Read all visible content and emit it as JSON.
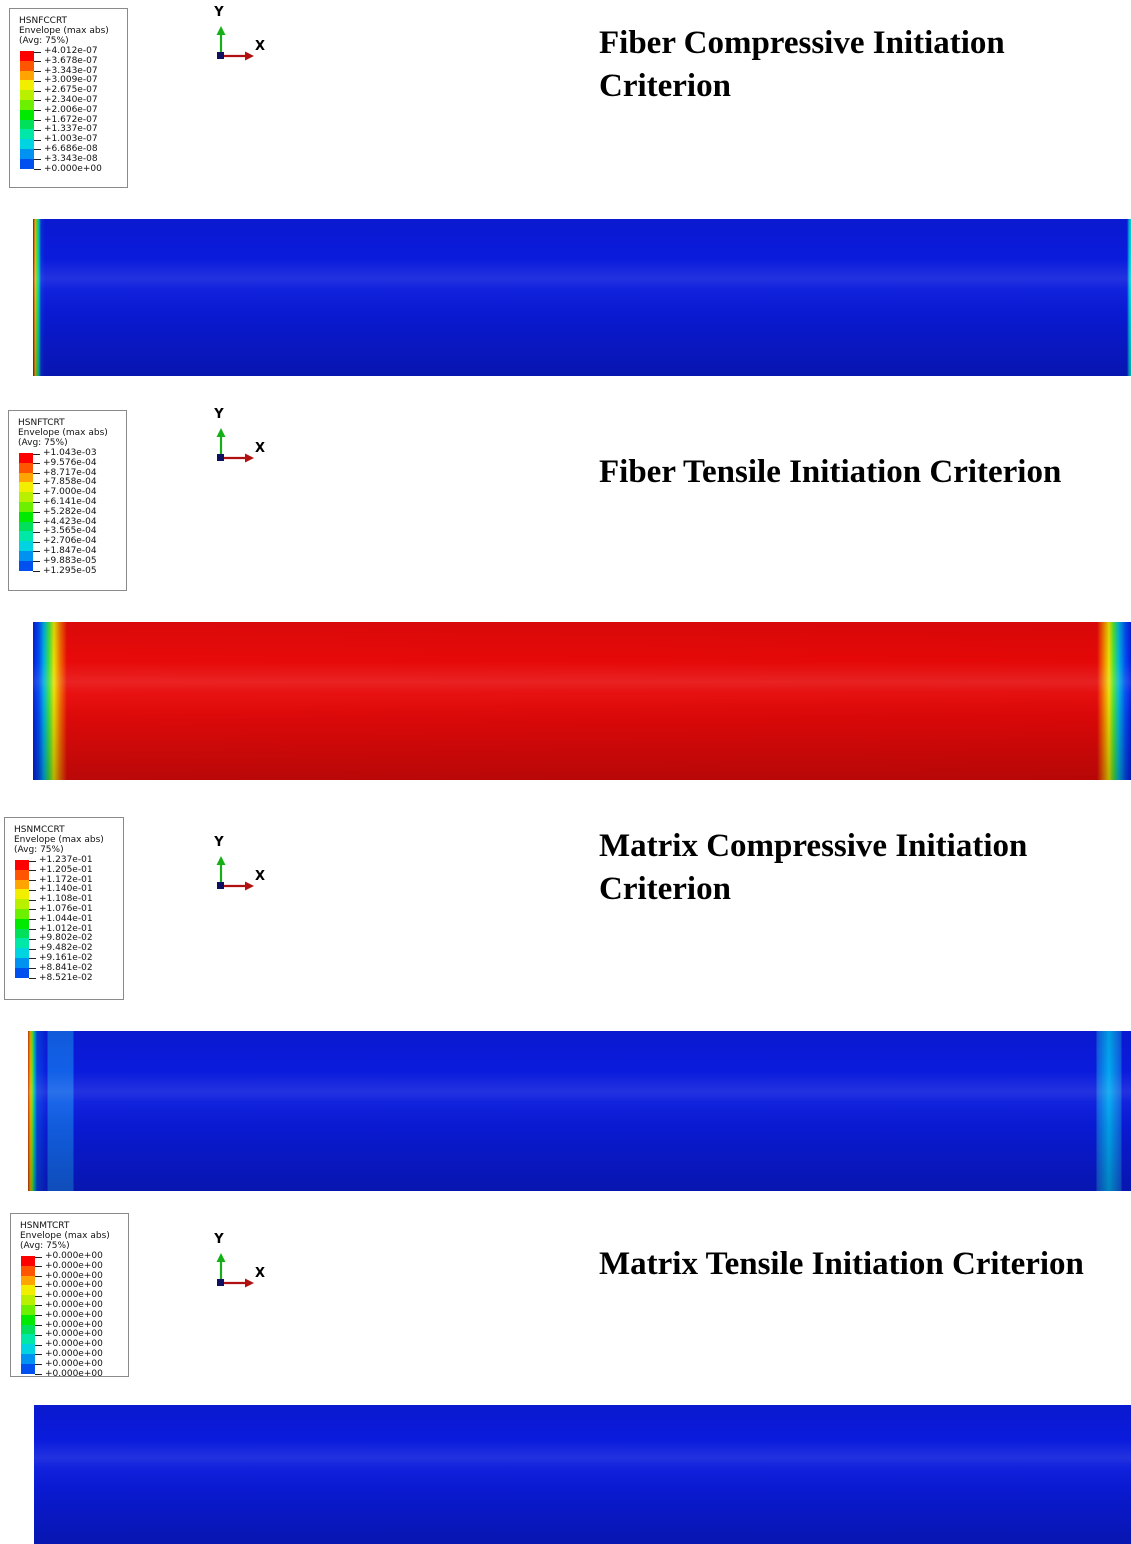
{
  "panels": [
    {
      "legend": {
        "variable": "HSNFCCRT",
        "envelope": "Envelope (max abs)",
        "avg": "(Avg: 75%)",
        "ticks": [
          "+4.012e-07",
          "+3.678e-07",
          "+3.343e-07",
          "+3.009e-07",
          "+2.675e-07",
          "+2.340e-07",
          "+2.006e-07",
          "+1.672e-07",
          "+1.337e-07",
          "+1.003e-07",
          "+6.686e-08",
          "+3.343e-08",
          "+0.000e+00"
        ]
      },
      "axis": {
        "y": "Y",
        "x": "X"
      },
      "title_lines": [
        "Fiber Compressive Initiation",
        "Criterion"
      ]
    },
    {
      "legend": {
        "variable": "HSNFTCRT",
        "envelope": "Envelope (max abs)",
        "avg": "(Avg: 75%)",
        "ticks": [
          "+1.043e-03",
          "+9.576e-04",
          "+8.717e-04",
          "+7.858e-04",
          "+7.000e-04",
          "+6.141e-04",
          "+5.282e-04",
          "+4.423e-04",
          "+3.565e-04",
          "+2.706e-04",
          "+1.847e-04",
          "+9.883e-05",
          "+1.295e-05"
        ]
      },
      "axis": {
        "y": "Y",
        "x": "X"
      },
      "title_lines": [
        "Fiber Tensile Initiation Criterion"
      ]
    },
    {
      "legend": {
        "variable": "HSNMCCRT",
        "envelope": "Envelope (max abs)",
        "avg": "(Avg: 75%)",
        "ticks": [
          "+1.237e-01",
          "+1.205e-01",
          "+1.172e-01",
          "+1.140e-01",
          "+1.108e-01",
          "+1.076e-01",
          "+1.044e-01",
          "+1.012e-01",
          "+9.802e-02",
          "+9.482e-02",
          "+9.161e-02",
          "+8.841e-02",
          "+8.521e-02"
        ]
      },
      "axis": {
        "y": "Y",
        "x": "X"
      },
      "title_lines": [
        "Matrix Compressive Initiation",
        "Criterion"
      ]
    },
    {
      "legend": {
        "variable": "HSNMTCRT",
        "envelope": "Envelope (max abs)",
        "avg": "(Avg: 75%)",
        "ticks": [
          "+0.000e+00",
          "+0.000e+00",
          "+0.000e+00",
          "+0.000e+00",
          "+0.000e+00",
          "+0.000e+00",
          "+0.000e+00",
          "+0.000e+00",
          "+0.000e+00",
          "+0.000e+00",
          "+0.000e+00",
          "+0.000e+00",
          "+0.000e+00"
        ]
      },
      "axis": {
        "y": "Y",
        "x": "X"
      },
      "title_lines": [
        "Matrix Tensile Initiation Criterion"
      ]
    }
  ],
  "colormap": [
    "#ff0000",
    "#ff5400",
    "#ffa400",
    "#f2ee00",
    "#b8f000",
    "#6cf000",
    "#00ea00",
    "#00e05a",
    "#00e8a8",
    "#00d4e0",
    "#0092f0",
    "#0050f0",
    "#0000ee"
  ],
  "contour_colors": {
    "blue_field": "#0a1bdc",
    "red_field": "#e40808"
  }
}
